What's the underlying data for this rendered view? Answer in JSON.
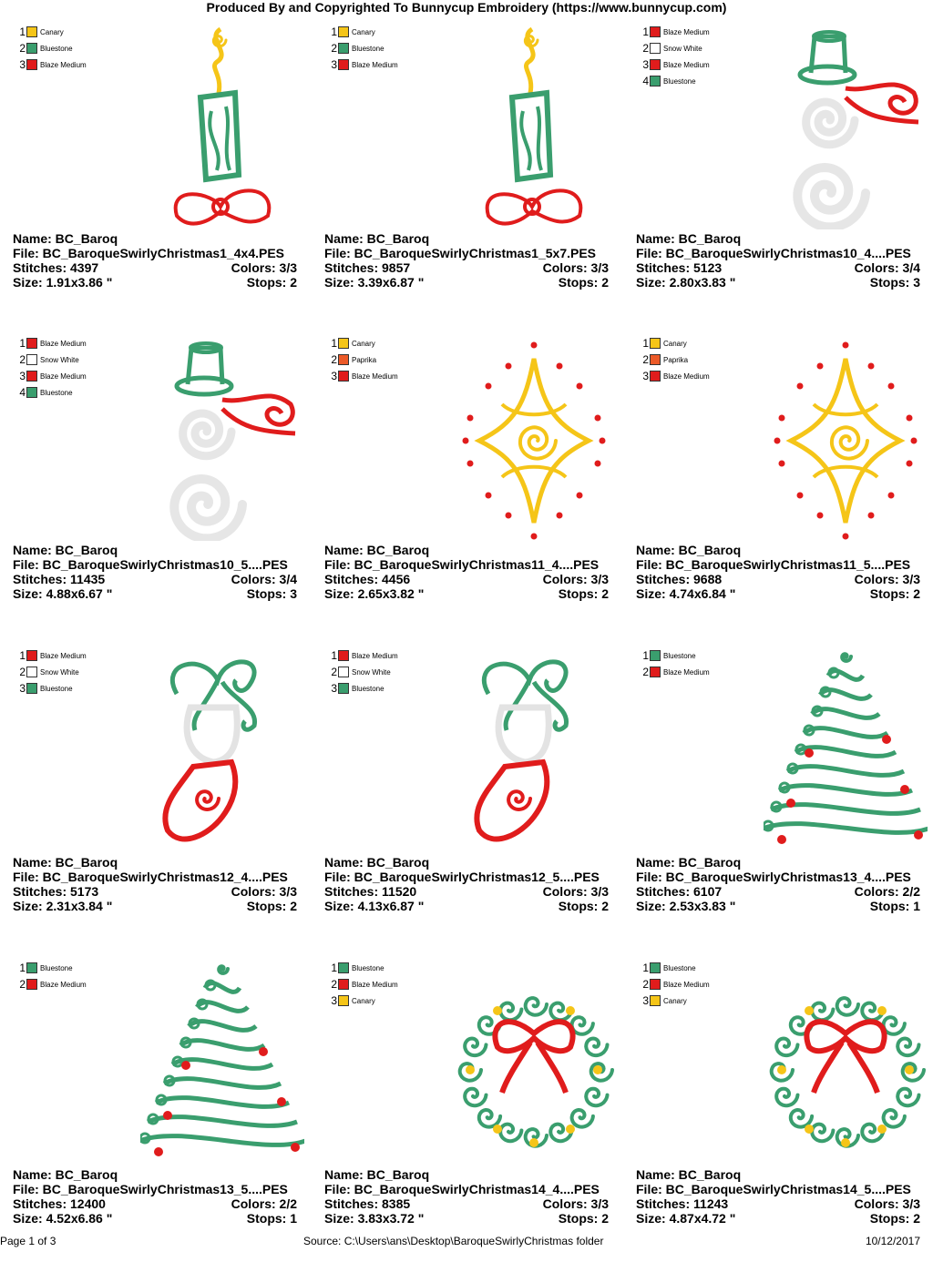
{
  "header": "Produced By and Copyrighted To Bunnycup Embroidery (https://www.bunnycup.com)",
  "footer": {
    "page": "Page 1 of 3",
    "source": "Source: C:\\Users\\ans\\Desktop\\BaroqueSwirlyChristmas folder",
    "date": "10/12/2017"
  },
  "colors": {
    "Canary": "#f5c518",
    "Bluestone": "#3a9e6e",
    "Blaze Medium": "#e01c1c",
    "Snow White": "#ffffff",
    "Paprika": "#ec5a28"
  },
  "designs": [
    {
      "icon": "candle-icon",
      "name": "Name: BC_Baroq",
      "file": "File: BC_BaroqueSwirlyChristmas1_4x4.PES",
      "stitches": "Stitches: 4397",
      "colors_used": "Colors: 3/3",
      "size": "Size: 1.91x3.86 \"",
      "stops": "Stops: 2",
      "thread": [
        {
          "num": "1",
          "name": "Canary",
          "hex": "#f5c518"
        },
        {
          "num": "2",
          "name": "Bluestone",
          "hex": "#3a9e6e"
        },
        {
          "num": "3",
          "name": "Blaze Medium",
          "hex": "#e01c1c"
        }
      ]
    },
    {
      "icon": "candle-icon",
      "name": "Name: BC_Baroq",
      "file": "File: BC_BaroqueSwirlyChristmas1_5x7.PES",
      "stitches": "Stitches: 9857",
      "colors_used": "Colors: 3/3",
      "size": "Size: 3.39x6.87 \"",
      "stops": "Stops: 2",
      "thread": [
        {
          "num": "1",
          "name": "Canary",
          "hex": "#f5c518"
        },
        {
          "num": "2",
          "name": "Bluestone",
          "hex": "#3a9e6e"
        },
        {
          "num": "3",
          "name": "Blaze Medium",
          "hex": "#e01c1c"
        }
      ]
    },
    {
      "icon": "snowman-icon",
      "name": "Name: BC_Baroq",
      "file": "File: BC_BaroqueSwirlyChristmas10_4....PES",
      "stitches": "Stitches: 5123",
      "colors_used": "Colors: 3/4",
      "size": "Size: 2.80x3.83 \"",
      "stops": "Stops: 3",
      "thread": [
        {
          "num": "1",
          "name": "Blaze Medium",
          "hex": "#e01c1c"
        },
        {
          "num": "2",
          "name": "Snow White",
          "hex": "#ffffff"
        },
        {
          "num": "3",
          "name": "Blaze Medium",
          "hex": "#e01c1c"
        },
        {
          "num": "4",
          "name": "Bluestone",
          "hex": "#3a9e6e"
        }
      ]
    },
    {
      "icon": "snowman-icon",
      "name": "Name: BC_Baroq",
      "file": "File: BC_BaroqueSwirlyChristmas10_5....PES",
      "stitches": "Stitches: 11435",
      "colors_used": "Colors: 3/4",
      "size": "Size: 4.88x6.67 \"",
      "stops": "Stops: 3",
      "thread": [
        {
          "num": "1",
          "name": "Blaze Medium",
          "hex": "#e01c1c"
        },
        {
          "num": "2",
          "name": "Snow White",
          "hex": "#ffffff"
        },
        {
          "num": "3",
          "name": "Blaze Medium",
          "hex": "#e01c1c"
        },
        {
          "num": "4",
          "name": "Bluestone",
          "hex": "#3a9e6e"
        }
      ]
    },
    {
      "icon": "star-icon",
      "name": "Name: BC_Baroq",
      "file": "File: BC_BaroqueSwirlyChristmas11_4....PES",
      "stitches": "Stitches: 4456",
      "colors_used": "Colors: 3/3",
      "size": "Size: 2.65x3.82 \"",
      "stops": "Stops: 2",
      "thread": [
        {
          "num": "1",
          "name": "Canary",
          "hex": "#f5c518"
        },
        {
          "num": "2",
          "name": "Paprika",
          "hex": "#ec5a28"
        },
        {
          "num": "3",
          "name": "Blaze Medium",
          "hex": "#e01c1c"
        }
      ]
    },
    {
      "icon": "star-icon",
      "name": "Name: BC_Baroq",
      "file": "File: BC_BaroqueSwirlyChristmas11_5....PES",
      "stitches": "Stitches: 9688",
      "colors_used": "Colors: 3/3",
      "size": "Size: 4.74x6.84 \"",
      "stops": "Stops: 2",
      "thread": [
        {
          "num": "1",
          "name": "Canary",
          "hex": "#f5c518"
        },
        {
          "num": "2",
          "name": "Paprika",
          "hex": "#ec5a28"
        },
        {
          "num": "3",
          "name": "Blaze Medium",
          "hex": "#e01c1c"
        }
      ]
    },
    {
      "icon": "stocking-icon",
      "name": "Name: BC_Baroq",
      "file": "File: BC_BaroqueSwirlyChristmas12_4....PES",
      "stitches": "Stitches: 5173",
      "colors_used": "Colors: 3/3",
      "size": "Size: 2.31x3.84 \"",
      "stops": "Stops: 2",
      "thread": [
        {
          "num": "1",
          "name": "Blaze Medium",
          "hex": "#e01c1c"
        },
        {
          "num": "2",
          "name": "Snow White",
          "hex": "#ffffff"
        },
        {
          "num": "3",
          "name": "Bluestone",
          "hex": "#3a9e6e"
        }
      ]
    },
    {
      "icon": "stocking-icon",
      "name": "Name: BC_Baroq",
      "file": "File: BC_BaroqueSwirlyChristmas12_5....PES",
      "stitches": "Stitches: 11520",
      "colors_used": "Colors: 3/3",
      "size": "Size: 4.13x6.87 \"",
      "stops": "Stops: 2",
      "thread": [
        {
          "num": "1",
          "name": "Blaze Medium",
          "hex": "#e01c1c"
        },
        {
          "num": "2",
          "name": "Snow White",
          "hex": "#ffffff"
        },
        {
          "num": "3",
          "name": "Bluestone",
          "hex": "#3a9e6e"
        }
      ]
    },
    {
      "icon": "tree-icon",
      "name": "Name: BC_Baroq",
      "file": "File: BC_BaroqueSwirlyChristmas13_4....PES",
      "stitches": "Stitches: 6107",
      "colors_used": "Colors: 2/2",
      "size": "Size: 2.53x3.83 \"",
      "stops": "Stops: 1",
      "thread": [
        {
          "num": "1",
          "name": "Bluestone",
          "hex": "#3a9e6e"
        },
        {
          "num": "2",
          "name": "Blaze Medium",
          "hex": "#e01c1c"
        }
      ]
    },
    {
      "icon": "tree-icon",
      "name": "Name: BC_Baroq",
      "file": "File: BC_BaroqueSwirlyChristmas13_5....PES",
      "stitches": "Stitches: 12400",
      "colors_used": "Colors: 2/2",
      "size": "Size: 4.52x6.86 \"",
      "stops": "Stops: 1",
      "thread": [
        {
          "num": "1",
          "name": "Bluestone",
          "hex": "#3a9e6e"
        },
        {
          "num": "2",
          "name": "Blaze Medium",
          "hex": "#e01c1c"
        }
      ]
    },
    {
      "icon": "wreath-icon",
      "name": "Name: BC_Baroq",
      "file": "File: BC_BaroqueSwirlyChristmas14_4....PES",
      "stitches": "Stitches: 8385",
      "colors_used": "Colors: 3/3",
      "size": "Size: 3.83x3.72 \"",
      "stops": "Stops: 2",
      "thread": [
        {
          "num": "1",
          "name": "Bluestone",
          "hex": "#3a9e6e"
        },
        {
          "num": "2",
          "name": "Blaze Medium",
          "hex": "#e01c1c"
        },
        {
          "num": "3",
          "name": "Canary",
          "hex": "#f5c518"
        }
      ]
    },
    {
      "icon": "wreath-icon",
      "name": "Name: BC_Baroq",
      "file": "File: BC_BaroqueSwirlyChristmas14_5....PES",
      "stitches": "Stitches: 11243",
      "colors_used": "Colors: 3/3",
      "size": "Size: 4.87x4.72 \"",
      "stops": "Stops: 2",
      "thread": [
        {
          "num": "1",
          "name": "Bluestone",
          "hex": "#3a9e6e"
        },
        {
          "num": "2",
          "name": "Blaze Medium",
          "hex": "#e01c1c"
        },
        {
          "num": "3",
          "name": "Canary",
          "hex": "#f5c518"
        }
      ]
    }
  ]
}
